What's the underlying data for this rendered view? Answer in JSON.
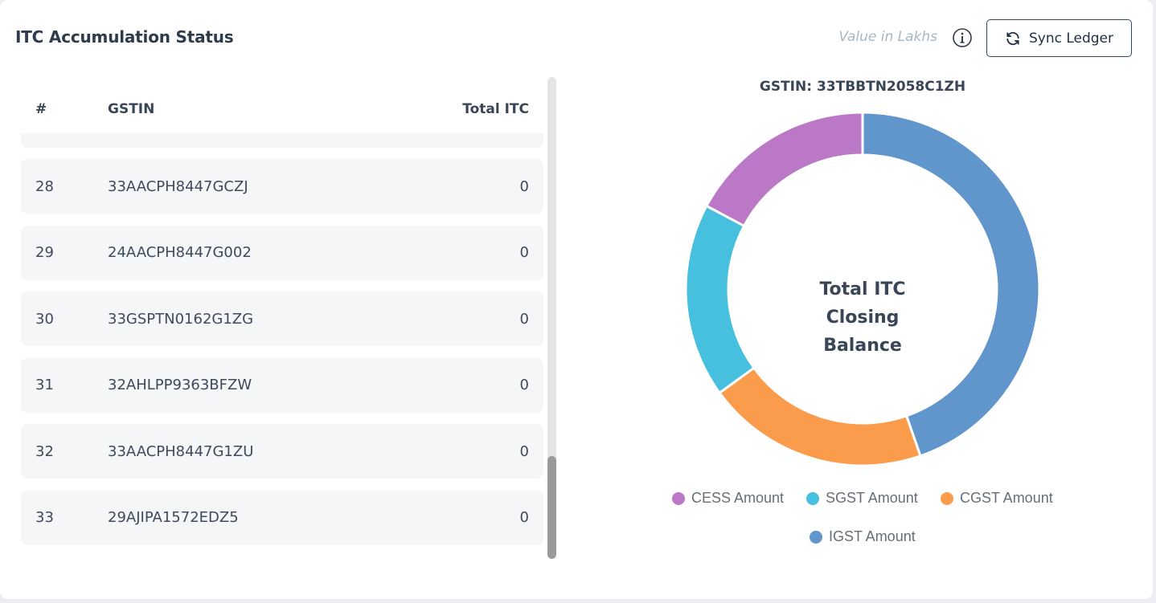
{
  "header": {
    "title": "ITC Accumulation Status",
    "value_note": "Value in Lakhs",
    "sync_label": "Sync Ledger"
  },
  "table": {
    "columns": [
      "#",
      "GSTIN",
      "Total ITC"
    ],
    "rows": [
      {
        "num": "28",
        "gstin": "33AACPH8447GCZJ",
        "itc": "0"
      },
      {
        "num": "29",
        "gstin": "24AACPH8447G002",
        "itc": "0"
      },
      {
        "num": "30",
        "gstin": "33GSPTN0162G1ZG",
        "itc": "0"
      },
      {
        "num": "31",
        "gstin": "32AHLPP9363BFZW",
        "itc": "0"
      },
      {
        "num": "32",
        "gstin": "33AACPH8447G1ZU",
        "itc": "0"
      },
      {
        "num": "33",
        "gstin": "29AJIPA1572EDZ5",
        "itc": "0"
      }
    ]
  },
  "chart_data": {
    "type": "pie",
    "variant": "donut",
    "title": "GSTIN: 33TBBTN2058C1ZH",
    "center_label": [
      "Total ITC",
      "Closing",
      "Balance"
    ],
    "series": [
      {
        "name": "IGST Amount",
        "value": 44.7,
        "color": "#6096cc"
      },
      {
        "name": "CGST Amount",
        "value": 20.3,
        "color": "#fb9c4c"
      },
      {
        "name": "SGST Amount",
        "value": 17.8,
        "color": "#47c0e0"
      },
      {
        "name": "CESS Amount",
        "value": 17.2,
        "color": "#bb78c7"
      }
    ],
    "legend_order": [
      "CESS Amount",
      "SGST Amount",
      "CGST Amount",
      "IGST Amount"
    ],
    "legend_position": "bottom"
  }
}
